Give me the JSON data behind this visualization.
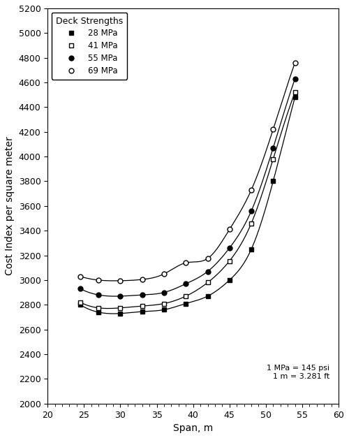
{
  "title": "",
  "xlabel": "Span, m",
  "ylabel": "Cost Index per square meter",
  "xlim": [
    20,
    60
  ],
  "ylim": [
    2000,
    5200
  ],
  "xticks": [
    20,
    25,
    30,
    35,
    40,
    45,
    50,
    55,
    60
  ],
  "yticks": [
    2000,
    2200,
    2400,
    2600,
    2800,
    3000,
    3200,
    3400,
    3600,
    3800,
    4000,
    4200,
    4400,
    4600,
    4800,
    5000,
    5200
  ],
  "annotation": "1 MPa = 145 psi\n1 m = 3.281 ft",
  "legend_title": "Deck Strengths",
  "series": [
    {
      "label": "28 MPa",
      "marker": "s",
      "fillstyle": "full",
      "x": [
        24.5,
        27,
        30,
        33,
        36,
        39,
        42,
        45,
        48,
        51,
        54
      ],
      "y": [
        2800,
        2740,
        2730,
        2745,
        2760,
        2810,
        2870,
        3000,
        3250,
        3800,
        4480
      ]
    },
    {
      "label": "41 MPa",
      "marker": "s",
      "fillstyle": "none",
      "x": [
        24.5,
        27,
        30,
        33,
        36,
        39,
        42,
        45,
        48,
        51,
        54
      ],
      "y": [
        2820,
        2775,
        2775,
        2790,
        2810,
        2870,
        2980,
        3155,
        3460,
        3980,
        4520
      ]
    },
    {
      "label": "55 MPa",
      "marker": "o",
      "fillstyle": "full",
      "x": [
        24.5,
        27,
        30,
        33,
        36,
        39,
        42,
        45,
        48,
        51,
        54
      ],
      "y": [
        2930,
        2880,
        2870,
        2880,
        2900,
        2970,
        3070,
        3260,
        3560,
        4070,
        4630
      ]
    },
    {
      "label": "69 MPa",
      "marker": "o",
      "fillstyle": "none",
      "x": [
        24.5,
        27,
        30,
        33,
        36,
        39,
        42,
        45,
        48,
        51,
        54
      ],
      "y": [
        3030,
        3000,
        2995,
        3005,
        3050,
        3140,
        3175,
        3410,
        3730,
        4220,
        4760
      ]
    }
  ],
  "line_color": "#000000",
  "marker_color": "#000000",
  "background_color": "#ffffff",
  "figsize": [
    5.0,
    6.27
  ],
  "dpi": 100
}
